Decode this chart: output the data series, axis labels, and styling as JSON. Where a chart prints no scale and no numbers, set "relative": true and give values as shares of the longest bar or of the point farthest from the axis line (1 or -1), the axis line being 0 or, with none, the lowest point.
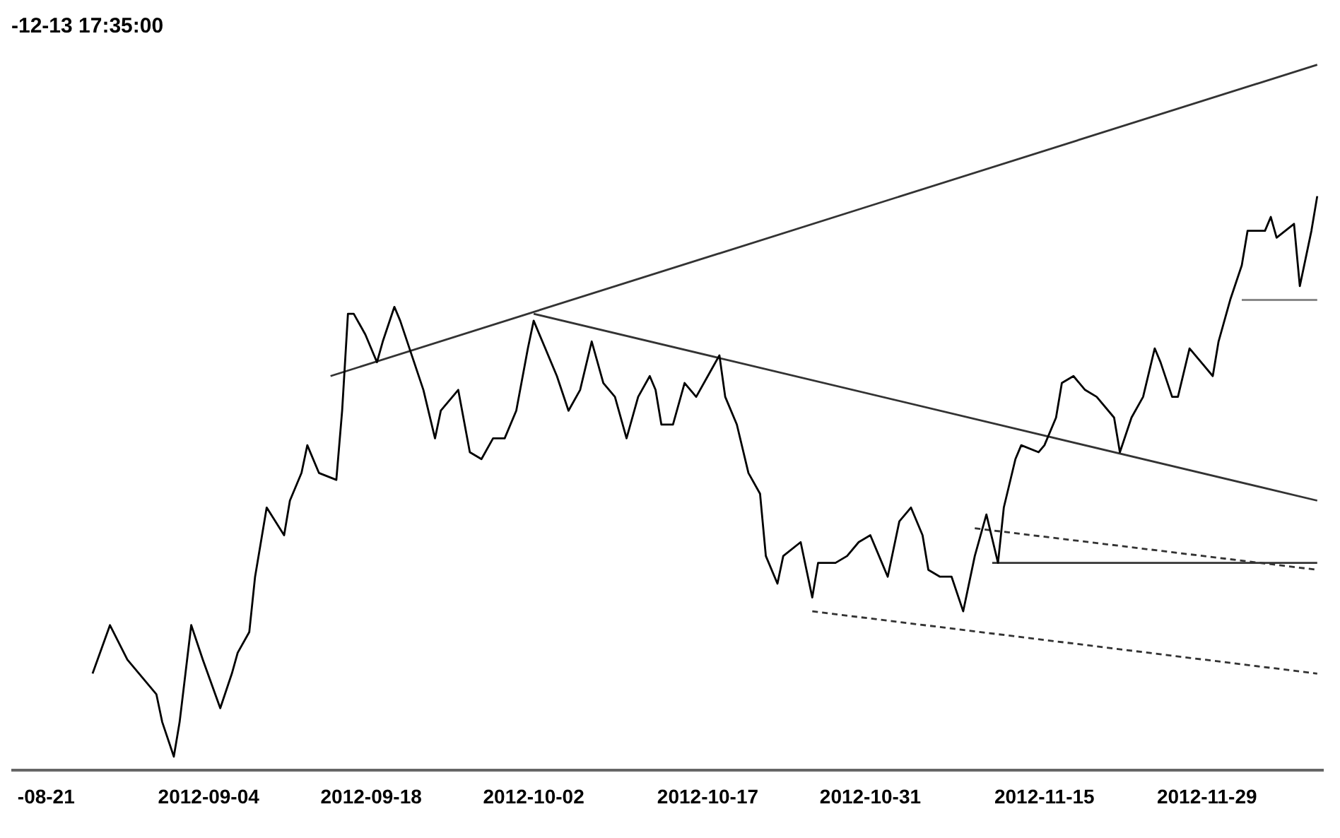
{
  "chart_data": {
    "type": "line",
    "title": "-12-13 17:35:00",
    "relative": true,
    "marker": "none",
    "legend": false,
    "xlim": [
      "2012-08-18",
      "2012-12-09"
    ],
    "xticks": [
      {
        "value": "2012-08-21",
        "label": "-08-21"
      },
      "2012-09-04",
      "2012-09-18",
      "2012-10-02",
      "2012-10-17",
      "2012-10-31",
      "2012-11-15",
      "2012-11-29"
    ],
    "series": [
      {
        "color": "#000000",
        "x": [
          "2012-08-25",
          "2012-08-26T12:00",
          "2012-08-28",
          "2012-08-30T12:00",
          "2012-08-31",
          "2012-09-01",
          "2012-09-01T12:00",
          "2012-09-02",
          "2012-09-02T12:00",
          "2012-09-03T12:00",
          "2012-09-05",
          "2012-09-06",
          "2012-09-06T12:00",
          "2012-09-07T12:00",
          "2012-09-08",
          "2012-09-08T12:00",
          "2012-09-09",
          "2012-09-10T12:00",
          "2012-09-11",
          "2012-09-12",
          "2012-09-12T12:00",
          "2012-09-13T12:00",
          "2012-09-15",
          "2012-09-15T12:00",
          "2012-09-16",
          "2012-09-16T12:00",
          "2012-09-17T12:00",
          "2012-09-18T12:00",
          "2012-09-19",
          "2012-09-20",
          "2012-09-20T12:00",
          "2012-09-21T12:00",
          "2012-09-22T12:00",
          "2012-09-23T12:00",
          "2012-09-24",
          "2012-09-25T12:00",
          "2012-09-26T12:00",
          "2012-09-27T12:00",
          "2012-09-28T12:00",
          "2012-09-29T12:00",
          "2012-09-30T12:00",
          "2012-10-01T12:00",
          "2012-10-02",
          "2012-10-03",
          "2012-10-04",
          "2012-10-05",
          "2012-10-06",
          "2012-10-07",
          "2012-10-08",
          "2012-10-09",
          "2012-10-10",
          "2012-10-11",
          "2012-10-12",
          "2012-10-12T12:00",
          "2012-10-13",
          "2012-10-14",
          "2012-10-15",
          "2012-10-16",
          "2012-10-17",
          "2012-10-18",
          "2012-10-18T12:00",
          "2012-10-19T12:00",
          "2012-10-20T12:00",
          "2012-10-21T12:00",
          "2012-10-22",
          "2012-10-23",
          "2012-10-23T12:00",
          "2012-10-25",
          "2012-10-25T12:00",
          "2012-10-26",
          "2012-10-26T12:00",
          "2012-10-28",
          "2012-10-29",
          "2012-10-30",
          "2012-10-31",
          "2012-11-01",
          "2012-11-01T12:00",
          "2012-11-02T12:00",
          "2012-11-03T12:00",
          "2012-11-04T12:00",
          "2012-11-05",
          "2012-11-06",
          "2012-11-07",
          "2012-11-08",
          "2012-11-09",
          "2012-11-10",
          "2012-11-11",
          "2012-11-11T12:00",
          "2012-11-12T12:00",
          "2012-11-13",
          "2012-11-14T12:00",
          "2012-11-15",
          "2012-11-16",
          "2012-11-16T12:00",
          "2012-11-17T12:00",
          "2012-11-18T12:00",
          "2012-11-19T12:00",
          "2012-11-21",
          "2012-11-21T12:00",
          "2012-11-22T12:00",
          "2012-11-23T12:00",
          "2012-11-24T12:00",
          "2012-11-25",
          "2012-11-26",
          "2012-11-26T12:00",
          "2012-11-27T12:00",
          "2012-11-28T12:00",
          "2012-11-29T12:00",
          "2012-11-30",
          "2012-12-01",
          "2012-12-02",
          "2012-12-02T12:00",
          "2012-12-04",
          "2012-12-04T12:00",
          "2012-12-05",
          "2012-12-06T12:00",
          "2012-12-07",
          "2012-12-08",
          "2012-12-08T12:00"
        ],
        "values": [
          0.12,
          0.19,
          0.14,
          0.09,
          0.05,
          0,
          0.05,
          0.12,
          0.19,
          0.14,
          0.07,
          0.12,
          0.15,
          0.18,
          0.26,
          0.31,
          0.36,
          0.32,
          0.37,
          0.41,
          0.45,
          0.41,
          0.4,
          0.5,
          0.64,
          0.64,
          0.61,
          0.57,
          0.6,
          0.65,
          0.63,
          0.58,
          0.53,
          0.46,
          0.5,
          0.53,
          0.44,
          0.43,
          0.46,
          0.46,
          0.5,
          0.59,
          0.63,
          0.59,
          0.55,
          0.5,
          0.53,
          0.6,
          0.54,
          0.52,
          0.46,
          0.52,
          0.55,
          0.53,
          0.48,
          0.48,
          0.54,
          0.52,
          0.55,
          0.58,
          0.52,
          0.48,
          0.41,
          0.38,
          0.29,
          0.25,
          0.29,
          0.31,
          0.27,
          0.23,
          0.28,
          0.28,
          0.29,
          0.31,
          0.32,
          0.28,
          0.26,
          0.34,
          0.36,
          0.32,
          0.27,
          0.26,
          0.26,
          0.21,
          0.29,
          0.35,
          0.28,
          0.36,
          0.43,
          0.45,
          0.44,
          0.45,
          0.49,
          0.54,
          0.55,
          0.53,
          0.52,
          0.49,
          0.44,
          0.49,
          0.52,
          0.59,
          0.57,
          0.52,
          0.52,
          0.59,
          0.57,
          0.55,
          0.6,
          0.66,
          0.71,
          0.76,
          0.76,
          0.78,
          0.75,
          0.77,
          0.68,
          0.76,
          0.81
        ]
      },
      {
        "type": "line",
        "color": "#333333",
        "x": [
          "2012-09-14T12:00",
          "2012-12-08T12:00"
        ],
        "values": [
          0.55,
          1.0
        ]
      },
      {
        "type": "line",
        "color": "#333333",
        "x": [
          "2012-10-02",
          "2012-12-08T12:00"
        ],
        "values": [
          0.64,
          0.37
        ]
      },
      {
        "type": "line",
        "color": "#333333",
        "line_style": "dashed",
        "x": [
          "2012-10-26",
          "2012-12-08T12:00"
        ],
        "values": [
          0.21,
          0.12
        ]
      },
      {
        "type": "line",
        "color": "#333333",
        "line_style": "dashed",
        "x": [
          "2012-11-09",
          "2012-12-08T12:00"
        ],
        "values": [
          0.33,
          0.27
        ]
      },
      {
        "type": "line",
        "color": "#333333",
        "x": [
          "2012-11-10T12:00",
          "2012-12-08T12:00"
        ],
        "values": [
          0.28,
          0.28
        ]
      },
      {
        "type": "line",
        "color": "#888888",
        "x": [
          "2012-12-02",
          "2012-12-08T12:00"
        ],
        "values": [
          0.66,
          0.66
        ]
      }
    ]
  }
}
